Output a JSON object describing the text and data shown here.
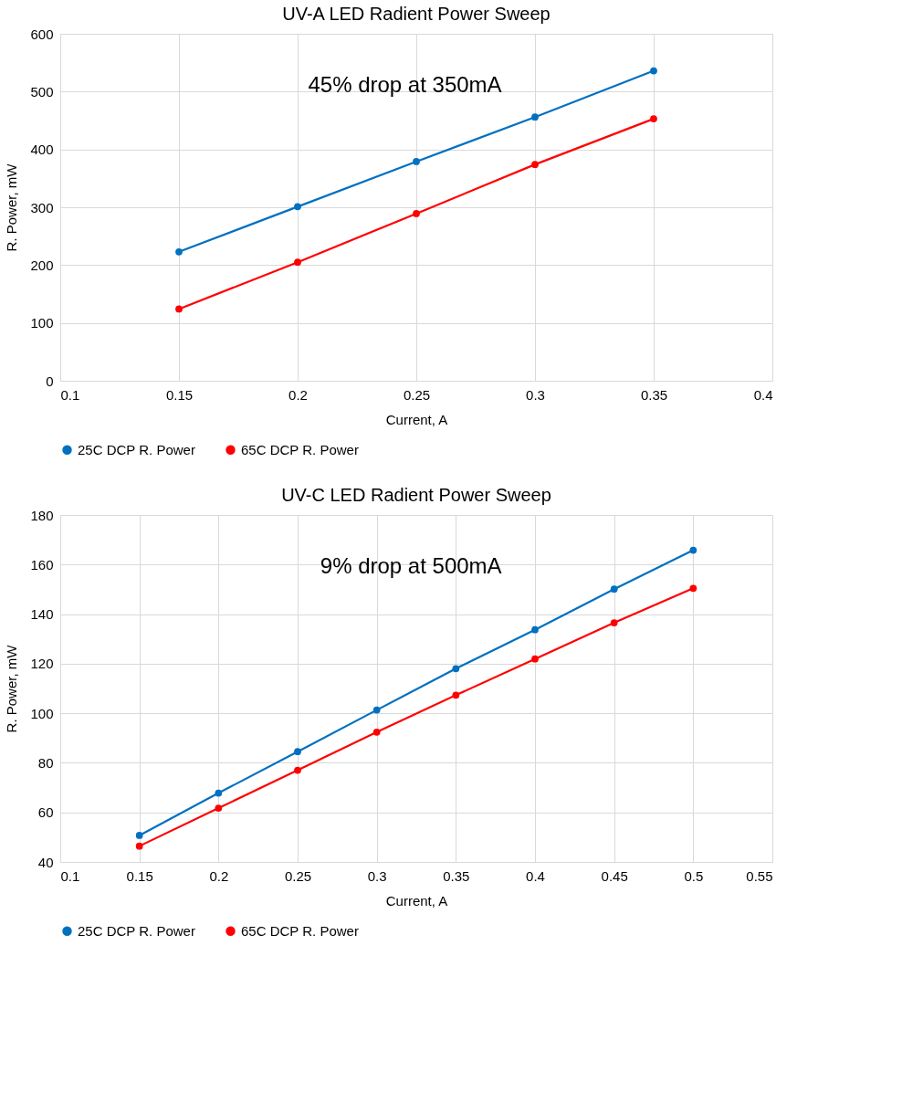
{
  "chart_data": [
    {
      "type": "line",
      "title": "UV-A LED Radient Power Sweep",
      "xlabel": "Current, A",
      "ylabel": "R. Power, mW",
      "x": [
        0.15,
        0.2,
        0.25,
        0.3,
        0.35
      ],
      "series": [
        {
          "name": "25C DCP R. Power",
          "color": "#0070c0",
          "values": [
            223,
            301,
            379,
            456,
            536
          ]
        },
        {
          "name": "65C DCP R. Power",
          "color": "#ff0000",
          "values": [
            124,
            205,
            289,
            374,
            453
          ]
        }
      ],
      "xlim": [
        0.1,
        0.4
      ],
      "xticks": [
        0.1,
        0.15,
        0.2,
        0.25,
        0.3,
        0.35,
        0.4
      ],
      "ylim": [
        0,
        600
      ],
      "yticks": [
        0,
        100,
        200,
        300,
        400,
        500,
        600
      ],
      "annotations": [
        "45% drop at 350mA"
      ],
      "grid": true,
      "legend": "bottom",
      "marker": "circle",
      "line_style": "solid"
    },
    {
      "type": "line",
      "title": "UV-C LED Radient Power Sweep",
      "xlabel": "Current, A",
      "ylabel": "R. Power, mW",
      "x": [
        0.15,
        0.2,
        0.25,
        0.3,
        0.35,
        0.4,
        0.45,
        0.5
      ],
      "series": [
        {
          "name": "25C DCP R. Power",
          "color": "#0070c0",
          "values": [
            50.7,
            67.8,
            84.5,
            101.3,
            118.0,
            133.7,
            150.1,
            165.8
          ]
        },
        {
          "name": "65C DCP R. Power",
          "color": "#ff0000",
          "values": [
            46.4,
            61.7,
            77.0,
            92.4,
            107.3,
            121.9,
            136.5,
            150.4
          ]
        }
      ],
      "xlim": [
        0.1,
        0.55
      ],
      "xticks": [
        0.1,
        0.15,
        0.2,
        0.25,
        0.3,
        0.35,
        0.4,
        0.45,
        0.5,
        0.55
      ],
      "ylim": [
        40,
        180
      ],
      "yticks": [
        40,
        60,
        80,
        100,
        120,
        140,
        160,
        180
      ],
      "annotations": [
        "9% drop at 500mA"
      ],
      "grid": true,
      "legend": "bottom",
      "marker": "circle",
      "line_style": "solid"
    }
  ]
}
